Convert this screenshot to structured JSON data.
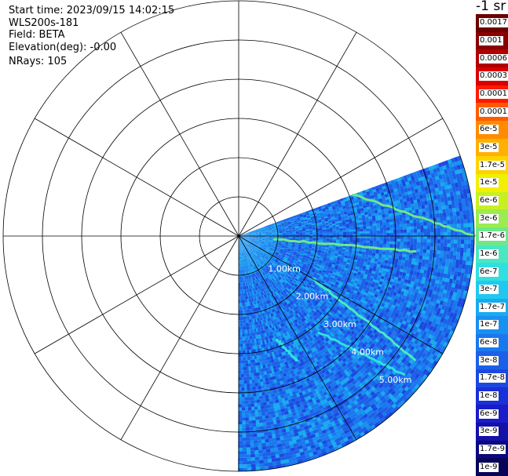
{
  "header": {
    "start_time": "Start time: 2023/09/15 14:02:15",
    "instrument": "WLS200s-181",
    "field": "Field: BETA",
    "elevation": "Elevation(deg): -0.00",
    "nrays": "NRays: 105"
  },
  "colorbar": {
    "unit_label": "-1 sr",
    "labels": [
      "0.0017",
      "0.001",
      "0.0006",
      "0.0003",
      "0.00017",
      "0.0001",
      "6e-5",
      "3e-5",
      "1.7e-5",
      "1e-5",
      "6e-6",
      "3e-6",
      "1.7e-6",
      "1e-6",
      "6e-7",
      "3e-7",
      "1.7e-7",
      "1e-7",
      "6e-8",
      "3e-8",
      "1.7e-8",
      "1e-8",
      "6e-9",
      "3e-9",
      "1.7e-9",
      "1e-9"
    ],
    "colors": [
      "#6a0000",
      "#8a0000",
      "#b00000",
      "#d80000",
      "#ff1a00",
      "#ff5a00",
      "#ff8c00",
      "#ffb000",
      "#ffd200",
      "#f0f000",
      "#c8f020",
      "#9aec50",
      "#6ee88a",
      "#4ae8c0",
      "#30e0e0",
      "#20c8f0",
      "#18aaf0",
      "#1890f0",
      "#1a78ee",
      "#1c60e8",
      "#1c48e0",
      "#1a30d8",
      "#1a1cc8",
      "#1410a8",
      "#0c0880",
      "#080458"
    ]
  },
  "chart_data": {
    "type": "heatmap",
    "projection": "polar PPI scan",
    "field": "BETA",
    "elevation_deg": -0.0,
    "nrays": 105,
    "range_rings_km": [
      1.0,
      2.0,
      3.0,
      4.0,
      5.0
    ],
    "range_ring_labels": [
      "1.00km",
      "2.00km",
      "3.00km",
      "4.00km",
      "5.00km"
    ],
    "rings_total": 6,
    "max_range_km": 6.0,
    "azimuth_spokes_deg": [
      0,
      30,
      60,
      90,
      120,
      150,
      180,
      210,
      240,
      270,
      300,
      330
    ],
    "data_sector_deg": [
      70,
      180
    ],
    "background_level": "3e-8 to 1e-7",
    "features": [
      {
        "name": "streak",
        "start_azimuth_deg": 70,
        "start_range_km": 3.1,
        "end_azimuth_deg": 90,
        "end_range_km": 6.0,
        "level": "1.7e-6"
      },
      {
        "name": "streak",
        "start_azimuth_deg": 95,
        "start_range_km": 0.9,
        "end_azimuth_deg": 95,
        "end_range_km": 4.5,
        "level": "1.7e-6"
      },
      {
        "name": "streak",
        "start_azimuth_deg": 120,
        "start_range_km": 2.2,
        "end_azimuth_deg": 125,
        "end_range_km": 5.5,
        "level": "1e-6"
      },
      {
        "name": "streak",
        "start_azimuth_deg": 140,
        "start_range_km": 3.2,
        "end_azimuth_deg": 130,
        "end_range_km": 5.5,
        "level": "6e-7"
      },
      {
        "name": "streak",
        "start_azimuth_deg": 160,
        "start_range_km": 2.8,
        "end_azimuth_deg": 155,
        "end_range_km": 3.5,
        "level": "6e-7"
      }
    ],
    "colorscale_min": "1e-9",
    "colorscale_max": "0.0017",
    "colorscale": "log"
  }
}
